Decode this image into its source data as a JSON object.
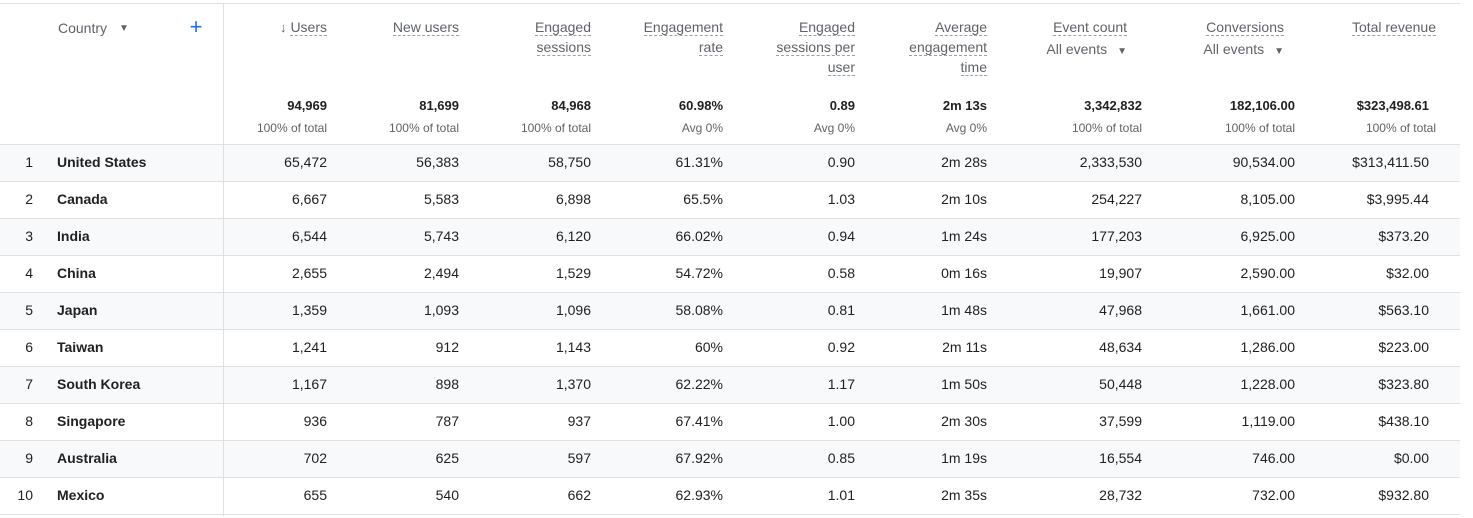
{
  "dimension": {
    "label": "Country",
    "add_label": "+"
  },
  "metrics": [
    {
      "key": "users",
      "label": "Users",
      "sorted": true,
      "sort_arrow": "↓",
      "total": "94,969",
      "total_sub": "100% of total"
    },
    {
      "key": "new_users",
      "label": "New users",
      "total": "81,699",
      "total_sub": "100% of total"
    },
    {
      "key": "engaged_sessions",
      "label": "Engaged sessions",
      "label_lines": [
        "Engaged",
        "sessions"
      ],
      "total": "84,968",
      "total_sub": "100% of total"
    },
    {
      "key": "engagement_rate",
      "label": "Engagement rate",
      "label_lines": [
        "Engagement",
        "rate"
      ],
      "total": "60.98%",
      "total_sub": "Avg 0%"
    },
    {
      "key": "engaged_sessions_per_user",
      "label": "Engaged sessions per user",
      "label_lines": [
        "Engaged",
        "sessions per",
        "user"
      ],
      "total": "0.89",
      "total_sub": "Avg 0%"
    },
    {
      "key": "avg_engagement_time",
      "label": "Average engagement time",
      "label_lines": [
        "Average",
        "engagement",
        "time"
      ],
      "total": "2m 13s",
      "total_sub": "Avg 0%"
    },
    {
      "key": "event_count",
      "label": "Event count",
      "selector": "All events",
      "total": "3,342,832",
      "total_sub": "100% of total"
    },
    {
      "key": "conversions",
      "label": "Conversions",
      "selector": "All events",
      "total": "182,106.00",
      "total_sub": "100% of total"
    },
    {
      "key": "total_revenue",
      "label": "Total revenue",
      "total": "$323,498.61",
      "total_sub": "100% of total"
    }
  ],
  "rows": [
    {
      "index": "1",
      "country": "United States",
      "values": [
        "65,472",
        "56,383",
        "58,750",
        "61.31%",
        "0.90",
        "2m 28s",
        "2,333,530",
        "90,534.00",
        "$313,411.50"
      ]
    },
    {
      "index": "2",
      "country": "Canada",
      "values": [
        "6,667",
        "5,583",
        "6,898",
        "65.5%",
        "1.03",
        "2m 10s",
        "254,227",
        "8,105.00",
        "$3,995.44"
      ]
    },
    {
      "index": "3",
      "country": "India",
      "values": [
        "6,544",
        "5,743",
        "6,120",
        "66.02%",
        "0.94",
        "1m 24s",
        "177,203",
        "6,925.00",
        "$373.20"
      ]
    },
    {
      "index": "4",
      "country": "China",
      "values": [
        "2,655",
        "2,494",
        "1,529",
        "54.72%",
        "0.58",
        "0m 16s",
        "19,907",
        "2,590.00",
        "$32.00"
      ]
    },
    {
      "index": "5",
      "country": "Japan",
      "values": [
        "1,359",
        "1,093",
        "1,096",
        "58.08%",
        "0.81",
        "1m 48s",
        "47,968",
        "1,661.00",
        "$563.10"
      ]
    },
    {
      "index": "6",
      "country": "Taiwan",
      "values": [
        "1,241",
        "912",
        "1,143",
        "60%",
        "0.92",
        "2m 11s",
        "48,634",
        "1,286.00",
        "$223.00"
      ]
    },
    {
      "index": "7",
      "country": "South Korea",
      "values": [
        "1,167",
        "898",
        "1,370",
        "62.22%",
        "1.17",
        "1m 50s",
        "50,448",
        "1,228.00",
        "$323.80"
      ]
    },
    {
      "index": "8",
      "country": "Singapore",
      "values": [
        "936",
        "787",
        "937",
        "67.41%",
        "1.00",
        "2m 30s",
        "37,599",
        "1,119.00",
        "$438.10"
      ]
    },
    {
      "index": "9",
      "country": "Australia",
      "values": [
        "702",
        "625",
        "597",
        "67.92%",
        "0.85",
        "1m 19s",
        "16,554",
        "746.00",
        "$0.00"
      ]
    },
    {
      "index": "10",
      "country": "Mexico",
      "values": [
        "655",
        "540",
        "662",
        "62.93%",
        "1.01",
        "2m 35s",
        "28,732",
        "732.00",
        "$932.80"
      ]
    }
  ],
  "colors": {
    "accent": "#1a73e8",
    "row_stripe": "#f8f9fa",
    "border": "#e0e0e0",
    "muted_text": "#5f6368"
  },
  "icons": {
    "dropdown": "caret-down-icon",
    "add": "plus-icon",
    "sort": "arrow-down-icon"
  }
}
